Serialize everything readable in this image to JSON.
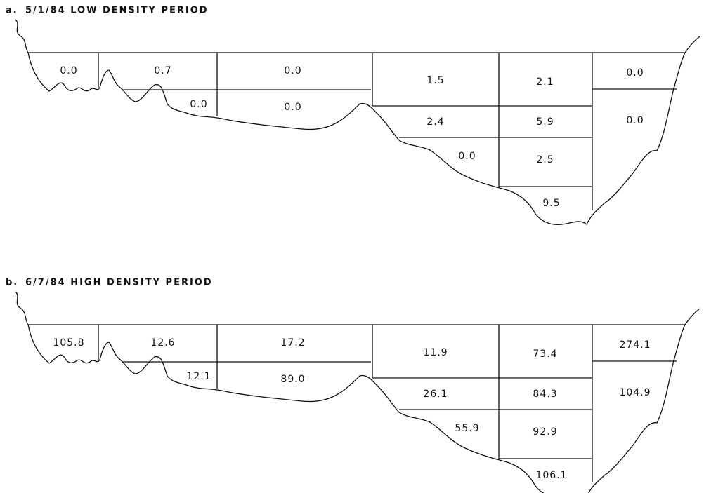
{
  "panels": [
    {
      "label": "a.",
      "title": "5/1/84  LOW DENSITY PERIOD",
      "cells": [
        "0.0",
        "0.7",
        "0.0",
        "1.5",
        "2.1",
        "0.0",
        "0.0",
        "0.0",
        "2.4",
        "5.9",
        "0.0",
        "0.0",
        "2.5",
        "9.5"
      ]
    },
    {
      "label": "b.",
      "title": "6/7/84  HIGH DENSITY PERIOD",
      "cells": [
        "105.8",
        "12.6",
        "17.2",
        "11.9",
        "73.4",
        "274.1",
        "12.1",
        "89.0",
        "26.1",
        "84.3",
        "104.9",
        "55.9",
        "92.9",
        "106.1"
      ]
    }
  ]
}
